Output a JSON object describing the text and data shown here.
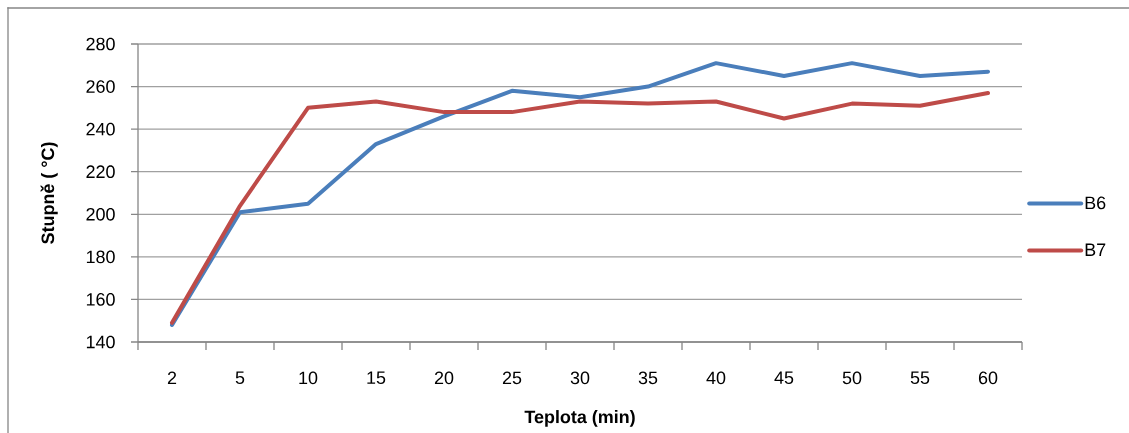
{
  "chart_data": {
    "type": "line",
    "xlabel": "Teplota (min)",
    "ylabel": "Stupně ( °C)",
    "categories": [
      "2",
      "5",
      "10",
      "15",
      "20",
      "25",
      "30",
      "35",
      "40",
      "45",
      "50",
      "55",
      "60"
    ],
    "series": [
      {
        "name": "B6",
        "color": "#4a7ebb",
        "values": [
          148,
          201,
          205,
          233,
          246,
          258,
          255,
          260,
          271,
          265,
          271,
          265,
          267
        ]
      },
      {
        "name": "B7",
        "color": "#be4b48",
        "values": [
          149,
          204,
          250,
          253,
          248,
          248,
          253,
          252,
          253,
          245,
          252,
          251,
          257
        ]
      }
    ],
    "ylim": [
      140,
      280
    ],
    "yticks": [
      140,
      160,
      180,
      200,
      220,
      240,
      260,
      280
    ],
    "grid": "y",
    "legend": "right",
    "marker": "none",
    "line_style": "solid"
  }
}
